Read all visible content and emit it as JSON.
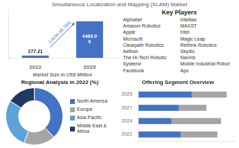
{
  "title": "Simultaneous Localization and Mapping (SLAM) Market",
  "chart_data": [
    {
      "type": "bar",
      "categories": [
        "2022",
        "2029"
      ],
      "values": [
        277.21,
        4469.06
      ],
      "value_labels": [
        "277.21",
        "4469.0\n6"
      ],
      "data_labels": true,
      "color": "#4472C4",
      "xlabel": "Market Size in US$ Million",
      "annotations": [
        "CAGR 68.76%"
      ],
      "ylim": [
        0,
        5809.778
      ],
      "tick_labels": "x",
      "grid": false
    },
    {
      "type": "text",
      "title": "Key Players",
      "annotations": [
        [
          "Alphabet",
          "Amazon Robotics",
          "Apple",
          "Microsoft",
          "Clearpath Robotics",
          "Aethon",
          "The Hi-Tech Robotic",
          "Systemz",
          "Facebook"
        ],
        [
          "Intellias",
          "MAXST",
          "Intel",
          "Magic Leap",
          "Rethink Robotics",
          "Skydio",
          "NavVis",
          "Mobile Industrial Robot",
          "Aps"
        ]
      ]
    },
    {
      "type": "doughnut",
      "title": "Regional Analysis in 2022 (%)",
      "categories": [
        "North America",
        "Europe",
        "Asia Pacific",
        "Middle East &\nAfrica"
      ],
      "values": [
        38,
        18,
        28,
        16
      ],
      "colors": [
        "#4472C4",
        "#A5A5A5",
        "#5BA3D9",
        "#1F3864"
      ],
      "legend": "right"
    },
    {
      "type": "bar",
      "orientation": "horizontal",
      "stacked": true,
      "title": "Offering Segment Overview",
      "categories": [
        "2029",
        "2027",
        "2024",
        "2022"
      ],
      "series": [
        {
          "color": "#4472C4",
          "values": [
            0.58,
            0.44,
            0.36,
            0.46
          ]
        },
        {
          "color": "#A5A5A5",
          "values": [
            0.38,
            0.3,
            0.54,
            0.4
          ]
        }
      ],
      "xlim": [
        0,
        1.05
      ],
      "tick_labels": "y",
      "grid": false
    }
  ]
}
